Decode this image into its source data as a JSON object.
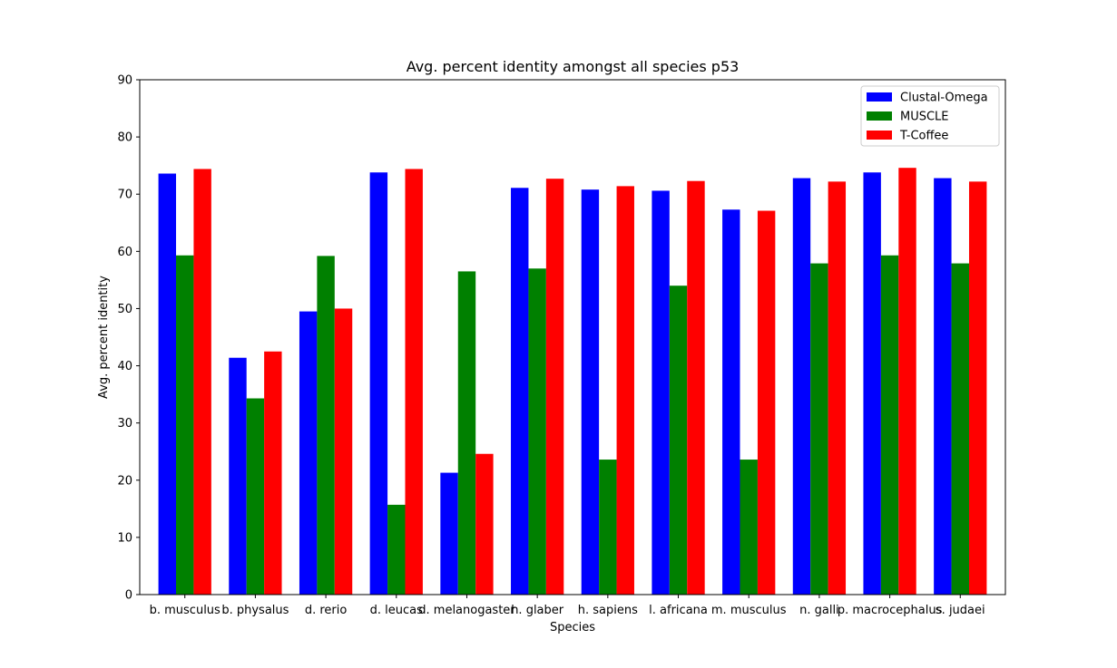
{
  "chart_data": {
    "type": "bar",
    "title": "Avg. percent identity amongst all species p53",
    "xlabel": "Species",
    "ylabel": "Avg. percent identity",
    "ylim": [
      0,
      90
    ],
    "yticks": [
      0,
      10,
      20,
      30,
      40,
      50,
      60,
      70,
      80,
      90
    ],
    "grid": false,
    "legend_position": "top-right",
    "categories": [
      "b. musculus",
      "b. physalus",
      "d. rerio",
      "d. leucas",
      "d. melanogaster",
      "h. glaber",
      "h. sapiens",
      "l. africana",
      "m. musculus",
      "n. galli",
      "p. macrocephalus",
      "s. judaei"
    ],
    "series": [
      {
        "name": "Clustal-Omega",
        "color": "#0000ff",
        "values": [
          73.6,
          41.4,
          49.5,
          73.8,
          21.3,
          71.1,
          70.8,
          70.6,
          67.3,
          72.8,
          73.8,
          72.8
        ]
      },
      {
        "name": "MUSCLE",
        "color": "#008000",
        "values": [
          59.3,
          34.3,
          59.2,
          15.7,
          56.5,
          57.0,
          23.6,
          54.0,
          23.6,
          57.9,
          59.3,
          57.9
        ]
      },
      {
        "name": "T-Coffee",
        "color": "#ff0000",
        "values": [
          74.4,
          42.5,
          50.0,
          74.4,
          24.6,
          72.7,
          71.4,
          72.3,
          67.1,
          72.2,
          74.6,
          72.2
        ]
      }
    ]
  }
}
